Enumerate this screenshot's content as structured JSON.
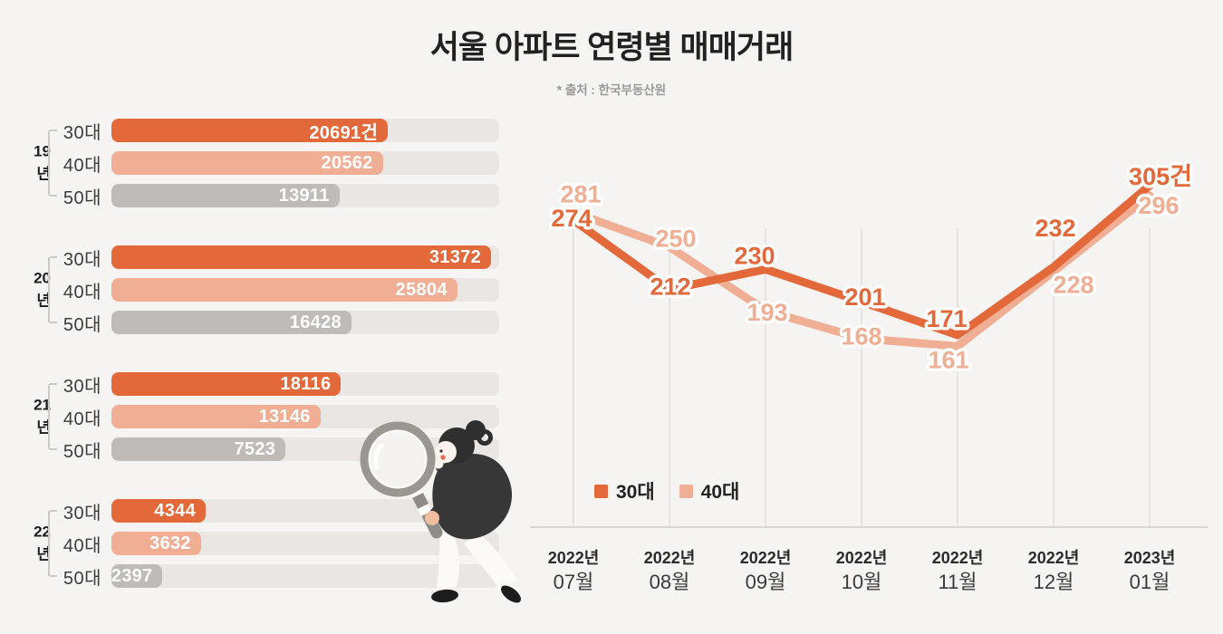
{
  "header": {
    "title_parts": {
      "prefix": "서울 아파트 ",
      "highlight": "연령별",
      "suffix": " 매매거래"
    },
    "source_note": "* 출처 : 한국부동산원"
  },
  "colors": {
    "background": "#F5F4F2",
    "age30": "#E3693B",
    "age40": "#F0AF95",
    "age50": "#BFBBB8",
    "track": "#E9E6E3",
    "grid": "#E0DEDB",
    "axis": "#D9D6D3"
  },
  "chart_data": [
    {
      "id": "yearly-age-bars",
      "type": "bar",
      "orientation": "horizontal",
      "unit": "건",
      "row_labels": [
        "30대",
        "40대",
        "50대"
      ],
      "row_colors": [
        "#E3693B",
        "#F0AF95",
        "#BFBBB8"
      ],
      "groups": [
        {
          "group": "19년",
          "values": [
            20691,
            20562,
            13911
          ],
          "value_labels": [
            "20691건",
            "20562",
            "13911"
          ],
          "bar_pct": [
            71.3,
            70.0,
            58.8
          ]
        },
        {
          "group": "20년",
          "values": [
            31372,
            25804,
            16428
          ],
          "value_labels": [
            "31372",
            "25804",
            "16428"
          ],
          "bar_pct": [
            97.9,
            89.2,
            61.9
          ]
        },
        {
          "group": "21년",
          "values": [
            18116,
            13146,
            7523
          ],
          "value_labels": [
            "18116",
            "13146",
            "7523"
          ],
          "bar_pct": [
            59.2,
            53.9,
            44.9
          ]
        },
        {
          "group": "22년",
          "values": [
            4344,
            3632,
            2397
          ],
          "value_labels": [
            "4344",
            "3632",
            "2397"
          ],
          "bar_pct": [
            24.3,
            23.1,
            13.2
          ]
        }
      ]
    },
    {
      "id": "monthly-trend-lines",
      "type": "line",
      "grid": "vertical",
      "legend_position": "inside-bottom-left",
      "legend": [
        "30대",
        "40대"
      ],
      "x_labels": [
        [
          "2022년",
          "07월"
        ],
        [
          "2022년",
          "08월"
        ],
        [
          "2022년",
          "09월"
        ],
        [
          "2022년",
          "10월"
        ],
        [
          "2022년",
          "11월"
        ],
        [
          "2022년",
          "12월"
        ],
        [
          "2023년",
          "01월"
        ]
      ],
      "series": [
        {
          "name": "40대",
          "color": "#F0AF95",
          "values": [
            281,
            250,
            193,
            168,
            161,
            228,
            296
          ],
          "point_labels": [
            "281",
            "250",
            "193",
            "168",
            "161",
            "228",
            "296"
          ],
          "label_offsets": [
            [
              8,
              -20
            ],
            [
              7,
              -9
            ],
            [
              2,
              2
            ],
            [
              0,
              -2
            ],
            [
              -10,
              15
            ],
            [
              22,
              15
            ],
            [
              10,
              11
            ]
          ]
        },
        {
          "name": "30대",
          "color": "#E3693B",
          "values": [
            274,
            212,
            230,
            201,
            171,
            232,
            305
          ],
          "point_labels": [
            "274",
            "212",
            "230",
            "201",
            "171",
            "232",
            "305건"
          ],
          "label_offsets": [
            [
              -2,
              -2
            ],
            [
              1,
              -3
            ],
            [
              -12,
              -15
            ],
            [
              4,
              -5
            ],
            [
              -12,
              -18
            ],
            [
              2,
              -43
            ],
            [
              12,
              -10
            ]
          ]
        }
      ]
    }
  ]
}
